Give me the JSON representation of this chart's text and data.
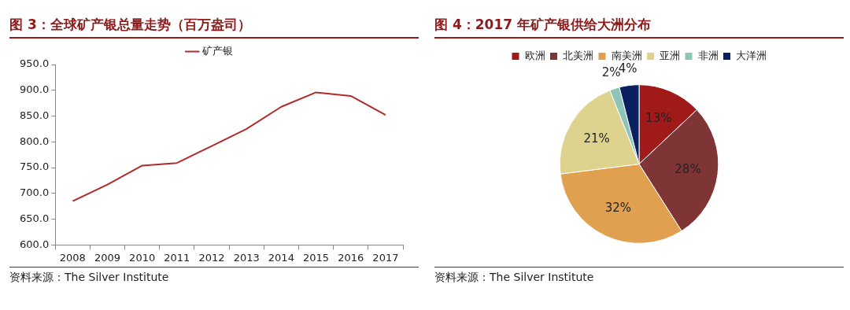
{
  "chart_data": [
    {
      "type": "line",
      "title": "图 3：全球矿产银总量走势（百万盎司）",
      "categories": [
        "2008",
        "2009",
        "2010",
        "2011",
        "2012",
        "2013",
        "2014",
        "2015",
        "2016",
        "2017"
      ],
      "series": [
        {
          "name": "矿产银",
          "color": "#b22a2a",
          "values": [
            685,
            717,
            754,
            759,
            792,
            825,
            868,
            896,
            889,
            852
          ]
        }
      ],
      "ylim": [
        600,
        950
      ],
      "yticks": [
        {
          "value": 600,
          "label": "600.0"
        },
        {
          "value": 650,
          "label": "650.0"
        },
        {
          "value": 700,
          "label": "700.0"
        },
        {
          "value": 750,
          "label": "750.0"
        },
        {
          "value": 800,
          "label": "800.0"
        },
        {
          "value": 850,
          "label": "850.0"
        },
        {
          "value": 900,
          "label": "900.0"
        },
        {
          "value": 950,
          "label": "950.0"
        }
      ],
      "legend": "top",
      "marker": "none",
      "annotations": [
        "资料来源：The Silver Institute"
      ]
    },
    {
      "type": "pie",
      "title": "图 4：2017 年矿产银供给大洲分布",
      "categories": [
        "欧洲",
        "北美洲",
        "南美洲",
        "亚洲",
        "非洲",
        "大洋洲"
      ],
      "values": [
        13,
        28,
        32,
        21,
        2,
        4
      ],
      "colors": [
        "#a01a1a",
        "#7f3535",
        "#e0a050",
        "#ddd38e",
        "#8fc4b8",
        "#0a2060"
      ],
      "value_labels": [
        "13%",
        "28%",
        "32%",
        "21%",
        "2%",
        "4%"
      ],
      "legend": "top",
      "annotations": [
        "资料来源：The Silver Institute"
      ]
    }
  ]
}
